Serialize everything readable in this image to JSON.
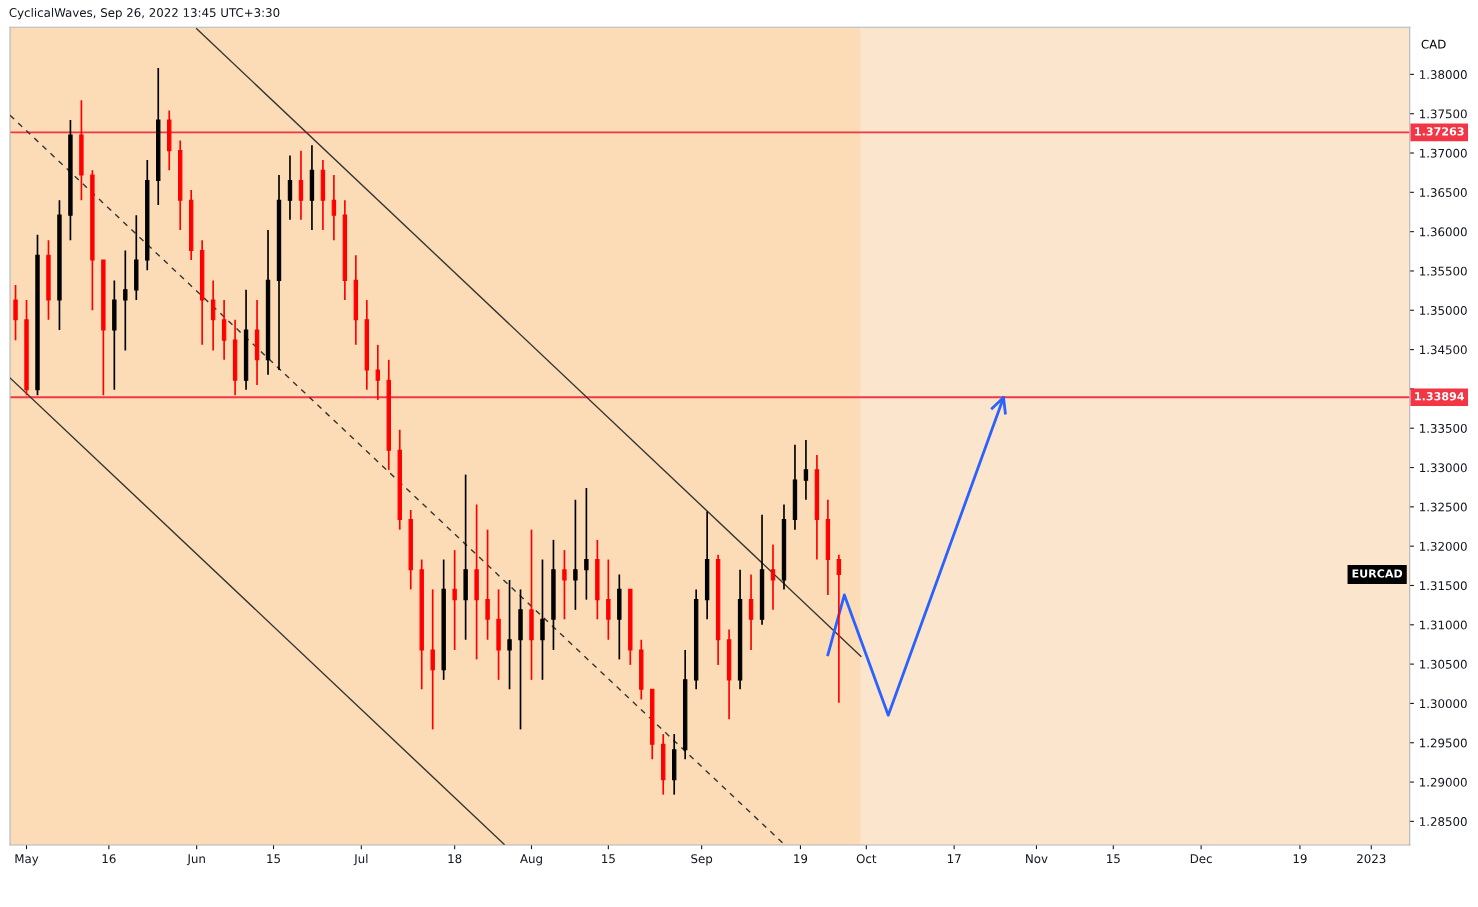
{
  "chart_data": {
    "type": "candlestick",
    "title": "CyclicalWaves, Sep 26, 2022 13:45 UTC+3:30",
    "ylabel": "CAD",
    "xlim": [
      "2022-04-28",
      "2023-01-08"
    ],
    "xticks": [
      {
        "value": "2022-05-01",
        "label": "May"
      },
      {
        "value": "2022-05-16",
        "label": "16"
      },
      {
        "value": "2022-06-01",
        "label": "Jun"
      },
      {
        "value": "2022-06-15",
        "label": "15"
      },
      {
        "value": "2022-07-01",
        "label": "Jul"
      },
      {
        "value": "2022-07-18",
        "label": "18"
      },
      {
        "value": "2022-08-01",
        "label": "Aug"
      },
      {
        "value": "2022-08-15",
        "label": "15"
      },
      {
        "value": "2022-09-01",
        "label": "Sep"
      },
      {
        "value": "2022-09-19",
        "label": "19"
      },
      {
        "value": "2022-10-01",
        "label": "Oct"
      },
      {
        "value": "2022-10-17",
        "label": "17"
      },
      {
        "value": "2022-11-01",
        "label": "Nov"
      },
      {
        "value": "2022-11-15",
        "label": "15"
      },
      {
        "value": "2022-12-01",
        "label": "Dec"
      },
      {
        "value": "2022-12-19",
        "label": "19"
      },
      {
        "value": "2023-01-01",
        "label": "2023"
      }
    ],
    "ylim": [
      1.282,
      1.386
    ],
    "yticks": [
      {
        "value": 1.285,
        "label": "1.28500"
      },
      {
        "value": 1.29,
        "label": "1.29000"
      },
      {
        "value": 1.295,
        "label": "1.29500"
      },
      {
        "value": 1.3,
        "label": "1.30000"
      },
      {
        "value": 1.305,
        "label": "1.30500"
      },
      {
        "value": 1.31,
        "label": "1.31000"
      },
      {
        "value": 1.315,
        "label": "1.31500"
      },
      {
        "value": 1.32,
        "label": "1.32000"
      },
      {
        "value": 1.325,
        "label": "1.32500"
      },
      {
        "value": 1.33,
        "label": "1.33000"
      },
      {
        "value": 1.335,
        "label": "1.33500"
      },
      {
        "value": 1.34,
        "label": null
      },
      {
        "value": 1.345,
        "label": "1.34500"
      },
      {
        "value": 1.35,
        "label": "1.35000"
      },
      {
        "value": 1.355,
        "label": "1.35500"
      },
      {
        "value": 1.36,
        "label": "1.36000"
      },
      {
        "value": 1.365,
        "label": "1.36500"
      },
      {
        "value": 1.37,
        "label": "1.37000"
      },
      {
        "value": 1.375,
        "label": "1.37500"
      },
      {
        "value": 1.38,
        "label": "1.38000"
      }
    ],
    "grid": false,
    "legend": false,
    "bands": [
      {
        "axis": "x",
        "from": "2022-04-28",
        "to": "2022-09-30",
        "color": "#fbdcb6"
      },
      {
        "axis": "x",
        "from": "2022-09-30",
        "to": "2023-01-08",
        "color": "#fbe5cd"
      }
    ],
    "ref_lines": [
      {
        "axis": "y",
        "value": 1.37263,
        "label": "1.37263",
        "color": "#f23645"
      },
      {
        "axis": "y",
        "value": 1.33894,
        "label": "1.33894",
        "color": "#f23645"
      }
    ],
    "series": [
      {
        "name": "EURCAD",
        "color": "#000000",
        "x": [
          "2022-04-29",
          "2022-05-01",
          "2022-05-03",
          "2022-05-05",
          "2022-05-07",
          "2022-05-09",
          "2022-05-11",
          "2022-05-13",
          "2022-05-15",
          "2022-05-17",
          "2022-05-19",
          "2022-05-21",
          "2022-05-23",
          "2022-05-25",
          "2022-05-27",
          "2022-05-29",
          "2022-05-31",
          "2022-06-02",
          "2022-06-04",
          "2022-06-06",
          "2022-06-08",
          "2022-06-10",
          "2022-06-12",
          "2022-06-14",
          "2022-06-16",
          "2022-06-18",
          "2022-06-20",
          "2022-06-22",
          "2022-06-24",
          "2022-06-26",
          "2022-06-28",
          "2022-06-30",
          "2022-07-02",
          "2022-07-04",
          "2022-07-06",
          "2022-07-08",
          "2022-07-10",
          "2022-07-12",
          "2022-07-14",
          "2022-07-16",
          "2022-07-18",
          "2022-07-20",
          "2022-07-22",
          "2022-07-24",
          "2022-07-26",
          "2022-07-28",
          "2022-07-30",
          "2022-08-01",
          "2022-08-03",
          "2022-08-05",
          "2022-08-07",
          "2022-08-09",
          "2022-08-11",
          "2022-08-13",
          "2022-08-15",
          "2022-08-17",
          "2022-08-19",
          "2022-08-21",
          "2022-08-23",
          "2022-08-25",
          "2022-08-27",
          "2022-08-29",
          "2022-08-31",
          "2022-09-02",
          "2022-09-04",
          "2022-09-06",
          "2022-09-08",
          "2022-09-10",
          "2022-09-12",
          "2022-09-14",
          "2022-09-16",
          "2022-09-18",
          "2022-09-20",
          "2022-09-22",
          "2022-09-24",
          "2022-09-26"
        ],
        "ohlc": [
          [
            1.3513,
            1.3532,
            1.3462,
            1.3488
          ],
          [
            1.3488,
            1.3513,
            1.3392,
            1.3399
          ],
          [
            1.3399,
            1.3596,
            1.3392,
            1.357
          ],
          [
            1.357,
            1.3589,
            1.3488,
            1.3513
          ],
          [
            1.3513,
            1.364,
            1.3475,
            1.3621
          ],
          [
            1.3621,
            1.3742,
            1.3589,
            1.3723
          ],
          [
            1.3723,
            1.3767,
            1.364,
            1.3672
          ],
          [
            1.3672,
            1.3678,
            1.35,
            1.3564
          ],
          [
            1.3564,
            1.3564,
            1.3392,
            1.3475
          ],
          [
            1.3475,
            1.3538,
            1.3399,
            1.3513
          ],
          [
            1.3513,
            1.3576,
            1.3449,
            1.3526
          ],
          [
            1.3526,
            1.3621,
            1.3513,
            1.3564
          ],
          [
            1.3564,
            1.3691,
            1.3551,
            1.3665
          ],
          [
            1.3665,
            1.3808,
            1.3634,
            1.3742
          ],
          [
            1.3742,
            1.3754,
            1.3678,
            1.3703
          ],
          [
            1.3703,
            1.3716,
            1.3602,
            1.364
          ],
          [
            1.364,
            1.3653,
            1.3564,
            1.3576
          ],
          [
            1.3576,
            1.3589,
            1.3456,
            1.3513
          ],
          [
            1.3513,
            1.3538,
            1.3449,
            1.3488
          ],
          [
            1.3488,
            1.3513,
            1.3437,
            1.3462
          ],
          [
            1.3462,
            1.3488,
            1.3392,
            1.3411
          ],
          [
            1.3411,
            1.3526,
            1.3399,
            1.3475
          ],
          [
            1.3475,
            1.3513,
            1.3405,
            1.3437
          ],
          [
            1.3437,
            1.3602,
            1.3418,
            1.3538
          ],
          [
            1.3538,
            1.3672,
            1.3424,
            1.364
          ],
          [
            1.364,
            1.3697,
            1.3615,
            1.3665
          ],
          [
            1.3665,
            1.3703,
            1.3615,
            1.364
          ],
          [
            1.364,
            1.371,
            1.3602,
            1.3678
          ],
          [
            1.3678,
            1.3691,
            1.3602,
            1.364
          ],
          [
            1.364,
            1.3672,
            1.3589,
            1.3621
          ],
          [
            1.3621,
            1.364,
            1.3513,
            1.3538
          ],
          [
            1.3538,
            1.357,
            1.3456,
            1.3488
          ],
          [
            1.3488,
            1.3513,
            1.3399,
            1.3424
          ],
          [
            1.3424,
            1.3456,
            1.3386,
            1.3411
          ],
          [
            1.3411,
            1.3437,
            1.3297,
            1.3322
          ],
          [
            1.3322,
            1.3348,
            1.3221,
            1.3234
          ],
          [
            1.3234,
            1.3246,
            1.3145,
            1.317
          ],
          [
            1.317,
            1.3183,
            1.3018,
            1.3068
          ],
          [
            1.3068,
            1.3145,
            1.2967,
            1.3043
          ],
          [
            1.3043,
            1.3183,
            1.303,
            1.3145
          ],
          [
            1.3145,
            1.3195,
            1.3068,
            1.3132
          ],
          [
            1.3132,
            1.3291,
            1.3081,
            1.317
          ],
          [
            1.317,
            1.3253,
            1.3056,
            1.3132
          ],
          [
            1.3132,
            1.3221,
            1.3081,
            1.3107
          ],
          [
            1.3107,
            1.3145,
            1.303,
            1.3068
          ],
          [
            1.3068,
            1.3157,
            1.3018,
            1.3081
          ],
          [
            1.3081,
            1.3145,
            1.2967,
            1.3119
          ],
          [
            1.3119,
            1.3221,
            1.303,
            1.3081
          ],
          [
            1.3081,
            1.3183,
            1.303,
            1.3107
          ],
          [
            1.3107,
            1.3208,
            1.3068,
            1.317
          ],
          [
            1.317,
            1.3195,
            1.3107,
            1.3157
          ],
          [
            1.3157,
            1.3259,
            1.3119,
            1.317
          ],
          [
            1.317,
            1.3274,
            1.3132,
            1.3183
          ],
          [
            1.3183,
            1.3208,
            1.3107,
            1.3132
          ],
          [
            1.3132,
            1.3183,
            1.3081,
            1.3107
          ],
          [
            1.3107,
            1.3164,
            1.3056,
            1.3145
          ],
          [
            1.3145,
            1.3145,
            1.3049,
            1.3068
          ],
          [
            1.3068,
            1.3081,
            1.3005,
            1.3018
          ],
          [
            1.3018,
            1.3018,
            1.2929,
            1.2948
          ],
          [
            1.2948,
            1.2961,
            1.2884,
            1.2903
          ],
          [
            1.2903,
            1.2961,
            1.2884,
            1.2941
          ],
          [
            1.2941,
            1.3068,
            1.2929,
            1.303
          ],
          [
            1.303,
            1.3145,
            1.3018,
            1.3132
          ],
          [
            1.3132,
            1.3244,
            1.3107,
            1.3183
          ],
          [
            1.3183,
            1.3189,
            1.3049,
            1.3081
          ],
          [
            1.3081,
            1.3094,
            1.298,
            1.303
          ],
          [
            1.303,
            1.317,
            1.3018,
            1.3132
          ],
          [
            1.3132,
            1.3164,
            1.3068,
            1.3107
          ],
          [
            1.3107,
            1.324,
            1.31,
            1.317
          ],
          [
            1.317,
            1.3202,
            1.3119,
            1.3157
          ],
          [
            1.3157,
            1.3253,
            1.3145,
            1.3234
          ],
          [
            1.3234,
            1.3329,
            1.3221,
            1.3284
          ],
          [
            1.3284,
            1.3335,
            1.3259,
            1.3297
          ],
          [
            1.3297,
            1.3316,
            1.3183,
            1.3234
          ],
          [
            1.3234,
            1.3259,
            1.3138,
            1.3183
          ],
          [
            1.3183,
            1.3189,
            1.3001,
            1.3164
          ]
        ],
        "colors": [
          "#ff0000",
          "#ff0000",
          "#000000",
          "#ff0000",
          "#000000",
          "#000000",
          "#ff0000",
          "#ff0000",
          "#ff0000",
          "#000000",
          "#000000",
          "#000000",
          "#000000",
          "#000000",
          "#ff0000",
          "#ff0000",
          "#ff0000",
          "#ff0000",
          "#ff0000",
          "#ff0000",
          "#ff0000",
          "#000000",
          "#ff0000",
          "#000000",
          "#000000",
          "#000000",
          "#ff0000",
          "#000000",
          "#ff0000",
          "#ff0000",
          "#ff0000",
          "#ff0000",
          "#ff0000",
          "#ff0000",
          "#ff0000",
          "#ff0000",
          "#ff0000",
          "#ff0000",
          "#ff0000",
          "#000000",
          "#ff0000",
          "#000000",
          "#ff0000",
          "#ff0000",
          "#ff0000",
          "#000000",
          "#000000",
          "#ff0000",
          "#000000",
          "#000000",
          "#ff0000",
          "#000000",
          "#000000",
          "#ff0000",
          "#ff0000",
          "#000000",
          "#ff0000",
          "#ff0000",
          "#ff0000",
          "#ff0000",
          "#000000",
          "#000000",
          "#000000",
          "#000000",
          "#ff0000",
          "#ff0000",
          "#000000",
          "#ff0000",
          "#000000",
          "#ff0000",
          "#000000",
          "#000000",
          "#000000",
          "#ff0000",
          "#ff0000",
          "#ff0000"
        ]
      },
      {
        "type": "line",
        "color": "#333333",
        "line_style": "solid",
        "x": [
          "2022-06-01",
          "2022-09-30"
        ],
        "values": [
          1.3858,
          1.306
        ]
      },
      {
        "type": "line",
        "color": "#333333",
        "line_style": "solid",
        "x": [
          "2022-04-28",
          "2022-07-27"
        ],
        "values": [
          1.3414,
          1.2821
        ]
      },
      {
        "type": "line",
        "color": "#333333",
        "line_style": "dashed",
        "x": [
          "2022-04-28",
          "2022-09-16"
        ],
        "values": [
          1.3748,
          1.2821
        ]
      },
      {
        "type": "line",
        "color": "#2962ff",
        "line_style": "solid",
        "x": [
          "2022-09-24",
          "2022-09-27",
          "2022-10-05",
          "2022-10-26"
        ],
        "values": [
          1.3062,
          1.3138,
          1.2985,
          1.3389
        ]
      }
    ]
  }
}
